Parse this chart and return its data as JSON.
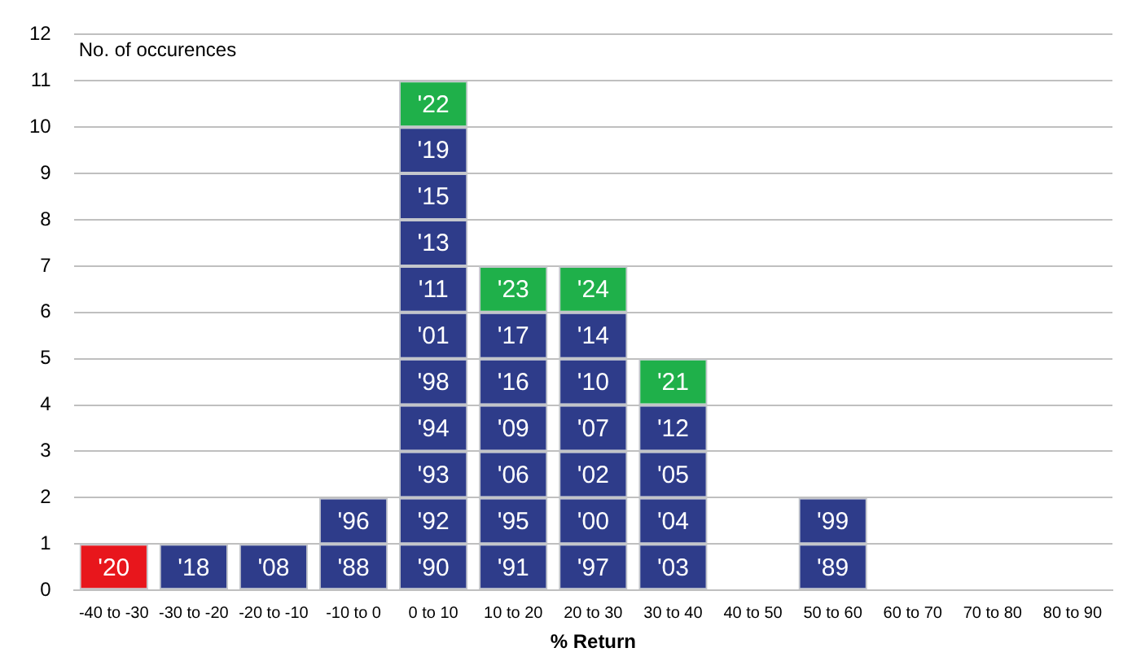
{
  "chart_data": {
    "type": "bar",
    "stacked": true,
    "ylabel": "No. of occurences",
    "xlabel": "% Return",
    "categories": [
      "-40 to -30",
      "-30 to -20",
      "-20 to -10",
      "-10 to 0",
      "0 to 10",
      "10 to 20",
      "20 to 30",
      "30 to 40",
      "40 to 50",
      "50 to 60",
      "60 to 70",
      "70 to 80",
      "80 to 90"
    ],
    "ylim": [
      0,
      12
    ],
    "yticks": [
      0,
      1,
      2,
      3,
      4,
      5,
      6,
      7,
      8,
      9,
      10,
      11,
      12
    ],
    "grid": "y",
    "legend": false,
    "series": [
      {
        "values": [
          1,
          1,
          1,
          1,
          1,
          1,
          1,
          1,
          null,
          1,
          null,
          null,
          null
        ],
        "colors": [
          "#e8161c",
          "#2e3c8a",
          "#2e3c8a",
          "#2e3c8a",
          "#2e3c8a",
          "#2e3c8a",
          "#2e3c8a",
          "#2e3c8a",
          null,
          "#2e3c8a",
          null,
          null,
          null
        ]
      },
      {
        "values": [
          null,
          null,
          null,
          1,
          1,
          1,
          1,
          1,
          null,
          1,
          null,
          null,
          null
        ],
        "colors": [
          null,
          null,
          null,
          "#2e3c8a",
          "#2e3c8a",
          "#2e3c8a",
          "#2e3c8a",
          "#2e3c8a",
          null,
          "#2e3c8a",
          null,
          null,
          null
        ]
      },
      {
        "values": [
          null,
          null,
          null,
          null,
          1,
          1,
          1,
          1,
          null,
          null,
          null,
          null,
          null
        ],
        "colors": [
          null,
          null,
          null,
          null,
          "#2e3c8a",
          "#2e3c8a",
          "#2e3c8a",
          "#2e3c8a",
          null,
          null,
          null,
          null,
          null
        ]
      },
      {
        "values": [
          null,
          null,
          null,
          null,
          1,
          1,
          1,
          1,
          null,
          null,
          null,
          null,
          null
        ],
        "colors": [
          null,
          null,
          null,
          null,
          "#2e3c8a",
          "#2e3c8a",
          "#2e3c8a",
          "#2e3c8a",
          null,
          null,
          null,
          null,
          null
        ]
      },
      {
        "values": [
          null,
          null,
          null,
          null,
          1,
          1,
          1,
          1,
          null,
          null,
          null,
          null,
          null
        ],
        "colors": [
          null,
          null,
          null,
          null,
          "#2e3c8a",
          "#2e3c8a",
          "#2e3c8a",
          "#1fb04a",
          null,
          null,
          null,
          null,
          null
        ]
      },
      {
        "values": [
          null,
          null,
          null,
          null,
          1,
          1,
          1,
          null,
          null,
          null,
          null,
          null,
          null
        ],
        "colors": [
          null,
          null,
          null,
          null,
          "#2e3c8a",
          "#2e3c8a",
          "#2e3c8a",
          null,
          null,
          null,
          null,
          null,
          null
        ]
      },
      {
        "values": [
          null,
          null,
          null,
          null,
          1,
          1,
          1,
          null,
          null,
          null,
          null,
          null,
          null
        ],
        "colors": [
          null,
          null,
          null,
          null,
          "#2e3c8a",
          "#1fb04a",
          "#1fb04a",
          null,
          null,
          null,
          null,
          null,
          null
        ]
      },
      {
        "values": [
          null,
          null,
          null,
          null,
          1,
          null,
          null,
          null,
          null,
          null,
          null,
          null,
          null
        ],
        "colors": [
          null,
          null,
          null,
          null,
          "#2e3c8a",
          null,
          null,
          null,
          null,
          null,
          null,
          null,
          null
        ]
      },
      {
        "values": [
          null,
          null,
          null,
          null,
          1,
          null,
          null,
          null,
          null,
          null,
          null,
          null,
          null
        ],
        "colors": [
          null,
          null,
          null,
          null,
          "#2e3c8a",
          null,
          null,
          null,
          null,
          null,
          null,
          null,
          null
        ]
      },
      {
        "values": [
          null,
          null,
          null,
          null,
          1,
          null,
          null,
          null,
          null,
          null,
          null,
          null,
          null
        ],
        "colors": [
          null,
          null,
          null,
          null,
          "#2e3c8a",
          null,
          null,
          null,
          null,
          null,
          null,
          null,
          null
        ]
      },
      {
        "values": [
          null,
          null,
          null,
          null,
          1,
          null,
          null,
          null,
          null,
          null,
          null,
          null,
          null
        ],
        "colors": [
          null,
          null,
          null,
          null,
          "#1fb04a",
          null,
          null,
          null,
          null,
          null,
          null,
          null,
          null
        ]
      }
    ],
    "annotations": [
      {
        "text": "'20",
        "x": "-40 to -30",
        "y": 1
      },
      {
        "text": "'18",
        "x": "-30 to -20",
        "y": 1
      },
      {
        "text": "'08",
        "x": "-20 to -10",
        "y": 1
      },
      {
        "text": "'88",
        "x": "-10 to 0",
        "y": 1
      },
      {
        "text": "'96",
        "x": "-10 to 0",
        "y": 2
      },
      {
        "text": "'90",
        "x": "0 to 10",
        "y": 1
      },
      {
        "text": "'92",
        "x": "0 to 10",
        "y": 2
      },
      {
        "text": "'93",
        "x": "0 to 10",
        "y": 3
      },
      {
        "text": "'94",
        "x": "0 to 10",
        "y": 4
      },
      {
        "text": "'98",
        "x": "0 to 10",
        "y": 5
      },
      {
        "text": "'01",
        "x": "0 to 10",
        "y": 6
      },
      {
        "text": "'11",
        "x": "0 to 10",
        "y": 7
      },
      {
        "text": "'13",
        "x": "0 to 10",
        "y": 8
      },
      {
        "text": "'15",
        "x": "0 to 10",
        "y": 9
      },
      {
        "text": "'19",
        "x": "0 to 10",
        "y": 10
      },
      {
        "text": "'22",
        "x": "0 to 10",
        "y": 11
      },
      {
        "text": "'91",
        "x": "10 to 20",
        "y": 1
      },
      {
        "text": "'95",
        "x": "10 to 20",
        "y": 2
      },
      {
        "text": "'06",
        "x": "10 to 20",
        "y": 3
      },
      {
        "text": "'09",
        "x": "10 to 20",
        "y": 4
      },
      {
        "text": "'16",
        "x": "10 to 20",
        "y": 5
      },
      {
        "text": "'17",
        "x": "10 to 20",
        "y": 6
      },
      {
        "text": "'23",
        "x": "10 to 20",
        "y": 7
      },
      {
        "text": "'97",
        "x": "20 to 30",
        "y": 1
      },
      {
        "text": "'00",
        "x": "20 to 30",
        "y": 2
      },
      {
        "text": "'02",
        "x": "20 to 30",
        "y": 3
      },
      {
        "text": "'07",
        "x": "20 to 30",
        "y": 4
      },
      {
        "text": "'10",
        "x": "20 to 30",
        "y": 5
      },
      {
        "text": "'14",
        "x": "20 to 30",
        "y": 6
      },
      {
        "text": "'24",
        "x": "20 to 30",
        "y": 7
      },
      {
        "text": "'03",
        "x": "30 to 40",
        "y": 1
      },
      {
        "text": "'04",
        "x": "30 to 40",
        "y": 2
      },
      {
        "text": "'05",
        "x": "30 to 40",
        "y": 3
      },
      {
        "text": "'12",
        "x": "30 to 40",
        "y": 4
      },
      {
        "text": "'21",
        "x": "30 to 40",
        "y": 5
      },
      {
        "text": "'89",
        "x": "50 to 60",
        "y": 1
      },
      {
        "text": "'99",
        "x": "50 to 60",
        "y": 2
      }
    ]
  }
}
